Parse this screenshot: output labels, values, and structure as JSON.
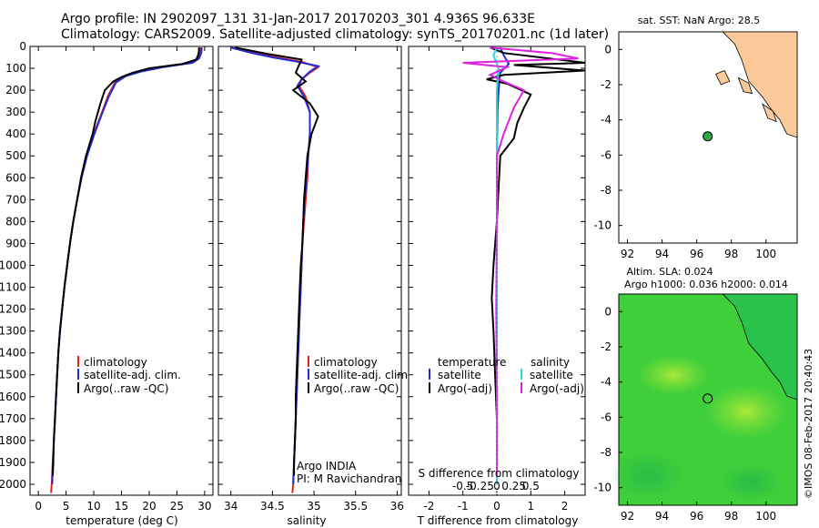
{
  "figure": {
    "title_line1": "Argo profile: IN 2902097_131 31-Jan-2017 20170203_301 4.936S 96.633E",
    "title_line2": "Climatology: CARS2009. Satellite-adjusted climatology: synTS_20170201.nc (1d later)",
    "watermark": "©IMOS 08-Feb-2017 20:40:43",
    "colors": {
      "climatology": "#e8221b",
      "satellite": "#1f2bd6",
      "argo": "#000000",
      "sat_sdiff": "#22d8e8",
      "argo_sdiff": "#e020e0",
      "land": "#fbc99a",
      "sla_field": "#3fcf3a",
      "argo_marker": "#2ea844"
    }
  },
  "chart_data": [
    {
      "type": "line",
      "panel": "temperature",
      "xlabel": "temperature (deg C)",
      "ylabel": "",
      "xlim": [
        -1.5,
        31.5
      ],
      "ylim": [
        2050,
        0
      ],
      "xticks": [
        0,
        5,
        10,
        15,
        20,
        25,
        30
      ],
      "yticks": [
        0,
        100,
        200,
        300,
        400,
        500,
        600,
        700,
        800,
        900,
        1000,
        1100,
        1200,
        1300,
        1400,
        1500,
        1600,
        1700,
        1800,
        1900,
        2000
      ],
      "legend": [
        "climatology",
        "satellite-adj. clim.",
        "Argo(..raw -QC)"
      ],
      "legend_placement": "lower-center",
      "series": [
        {
          "name": "climatology",
          "color": "#e8221b",
          "points": [
            [
              29.3,
              5
            ],
            [
              29.2,
              30
            ],
            [
              28.8,
              55
            ],
            [
              27.5,
              75
            ],
            [
              22,
              95
            ],
            [
              18,
              115
            ],
            [
              15.5,
              135
            ],
            [
              13.8,
              165
            ],
            [
              12.5,
              230
            ],
            [
              11.5,
              300
            ],
            [
              10,
              400
            ],
            [
              8.7,
              500
            ],
            [
              7.8,
              600
            ],
            [
              7,
              700
            ],
            [
              6.3,
              800
            ],
            [
              5.7,
              900
            ],
            [
              5.2,
              1000
            ],
            [
              4.7,
              1100
            ],
            [
              4.3,
              1200
            ],
            [
              3.9,
              1300
            ],
            [
              3.6,
              1400
            ],
            [
              3.4,
              1500
            ],
            [
              3.2,
              1600
            ],
            [
              3.0,
              1700
            ],
            [
              2.8,
              1800
            ],
            [
              2.6,
              1900
            ],
            [
              2.4,
              2000
            ],
            [
              2.3,
              2040
            ]
          ]
        },
        {
          "name": "satellite-adj. clim.",
          "color": "#1f2bd6",
          "points": [
            [
              29.5,
              5
            ],
            [
              29.4,
              30
            ],
            [
              29,
              55
            ],
            [
              27.8,
              75
            ],
            [
              22.5,
              95
            ],
            [
              18.5,
              115
            ],
            [
              15.8,
              135
            ],
            [
              14,
              165
            ],
            [
              12.7,
              230
            ],
            [
              11.6,
              300
            ],
            [
              10.1,
              400
            ],
            [
              8.8,
              500
            ],
            [
              7.8,
              600
            ],
            [
              7,
              700
            ],
            [
              6.3,
              800
            ],
            [
              5.7,
              900
            ],
            [
              5.2,
              1000
            ],
            [
              4.7,
              1100
            ],
            [
              4.3,
              1200
            ],
            [
              3.9,
              1300
            ],
            [
              3.6,
              1400
            ],
            [
              3.4,
              1500
            ],
            [
              3.2,
              1600
            ],
            [
              3.0,
              1700
            ],
            [
              2.8,
              1800
            ],
            [
              2.6,
              1900
            ],
            [
              2.5,
              2000
            ]
          ]
        },
        {
          "name": "Argo(..raw -QC)",
          "color": "#000000",
          "points": [
            [
              29,
              5
            ],
            [
              28.9,
              35
            ],
            [
              28.5,
              60
            ],
            [
              26,
              80
            ],
            [
              20,
              100
            ],
            [
              17,
              120
            ],
            [
              15,
              140
            ],
            [
              13.5,
              160
            ],
            [
              12,
              200
            ],
            [
              11.2,
              260
            ],
            [
              10.3,
              340
            ],
            [
              9.8,
              400
            ],
            [
              8.6,
              500
            ],
            [
              7.7,
              600
            ],
            [
              7,
              700
            ],
            [
              6.3,
              800
            ],
            [
              5.7,
              900
            ],
            [
              5.2,
              1000
            ],
            [
              4.7,
              1100
            ],
            [
              4.3,
              1200
            ],
            [
              3.9,
              1300
            ],
            [
              3.6,
              1400
            ],
            [
              3.4,
              1500
            ],
            [
              3.2,
              1600
            ],
            [
              3.0,
              1700
            ],
            [
              2.8,
              1800
            ],
            [
              2.7,
              1900
            ],
            [
              2.6,
              1960
            ]
          ]
        }
      ]
    },
    {
      "type": "line",
      "panel": "salinity",
      "xlabel": "salinity",
      "ylabel": "",
      "xlim": [
        33.85,
        36.05
      ],
      "ylim": [
        2050,
        0
      ],
      "xticks": [
        34,
        34.5,
        35,
        35.5,
        36
      ],
      "legend": [
        "climatology",
        "satellite-adj. clim.",
        "Argo(..raw -QC)"
      ],
      "legend_placement": "lower-right",
      "annotations": [
        "Argo INDIA",
        "PI: M Ravichandran"
      ],
      "series": [
        {
          "name": "climatology",
          "color": "#e8221b",
          "points": [
            [
              34.05,
              5
            ],
            [
              34.3,
              30
            ],
            [
              34.55,
              50
            ],
            [
              34.85,
              70
            ],
            [
              35.05,
              95
            ],
            [
              34.95,
              120
            ],
            [
              34.85,
              150
            ],
            [
              34.82,
              180
            ],
            [
              34.9,
              230
            ],
            [
              34.95,
              300
            ],
            [
              34.95,
              400
            ],
            [
              34.93,
              500
            ],
            [
              34.92,
              600
            ],
            [
              34.9,
              700
            ],
            [
              34.88,
              800
            ],
            [
              34.86,
              900
            ],
            [
              34.85,
              1000
            ],
            [
              34.84,
              1100
            ],
            [
              34.83,
              1200
            ],
            [
              34.82,
              1300
            ],
            [
              34.81,
              1400
            ],
            [
              34.8,
              1500
            ],
            [
              34.79,
              1600
            ],
            [
              34.78,
              1700
            ],
            [
              34.77,
              1800
            ],
            [
              34.76,
              1900
            ],
            [
              34.75,
              2000
            ],
            [
              34.74,
              2040
            ]
          ]
        },
        {
          "name": "satellite-adj. clim.",
          "color": "#1f2bd6",
          "points": [
            [
              34.0,
              5
            ],
            [
              34.25,
              30
            ],
            [
              34.5,
              50
            ],
            [
              34.8,
              70
            ],
            [
              35.05,
              90
            ],
            [
              34.95,
              115
            ],
            [
              34.85,
              150
            ],
            [
              34.8,
              180
            ],
            [
              34.88,
              230
            ],
            [
              34.95,
              300
            ],
            [
              34.95,
              400
            ],
            [
              34.93,
              500
            ],
            [
              34.91,
              600
            ],
            [
              34.89,
              700
            ],
            [
              34.87,
              800
            ],
            [
              34.86,
              900
            ],
            [
              34.85,
              1000
            ],
            [
              34.84,
              1100
            ],
            [
              34.83,
              1200
            ],
            [
              34.82,
              1300
            ],
            [
              34.81,
              1400
            ],
            [
              34.8,
              1500
            ],
            [
              34.79,
              1600
            ],
            [
              34.78,
              1700
            ],
            [
              34.77,
              1800
            ],
            [
              34.76,
              1900
            ],
            [
              34.75,
              2000
            ]
          ]
        },
        {
          "name": "Argo(..raw -QC)",
          "color": "#000000",
          "points": [
            [
              34.05,
              5
            ],
            [
              34.45,
              35
            ],
            [
              34.85,
              60
            ],
            [
              34.82,
              85
            ],
            [
              34.78,
              120
            ],
            [
              34.9,
              160
            ],
            [
              34.75,
              200
            ],
            [
              34.95,
              260
            ],
            [
              35.05,
              320
            ],
            [
              34.97,
              400
            ],
            [
              34.92,
              500
            ],
            [
              34.9,
              600
            ],
            [
              34.88,
              700
            ],
            [
              34.87,
              800
            ],
            [
              34.86,
              900
            ],
            [
              34.84,
              1000
            ],
            [
              34.83,
              1100
            ],
            [
              34.82,
              1200
            ],
            [
              34.81,
              1300
            ],
            [
              34.8,
              1400
            ],
            [
              34.79,
              1500
            ],
            [
              34.78,
              1600
            ],
            [
              34.78,
              1700
            ],
            [
              34.77,
              1800
            ],
            [
              34.76,
              1900
            ],
            [
              34.76,
              1960
            ]
          ]
        }
      ]
    },
    {
      "type": "line",
      "panel": "difference",
      "xlabel": "T difference from climatology",
      "xlabel_top": "S difference from climatology",
      "xlim": [
        -2.6,
        2.6
      ],
      "ylim": [
        2050,
        0
      ],
      "xticks": [
        -2,
        -1,
        0,
        1,
        2
      ],
      "xticks_top": [
        "-0.5",
        "-0.25",
        "0",
        "0.25",
        "0.5"
      ],
      "legend_titles": [
        "temperature",
        "salinity"
      ],
      "legend": [
        "satellite",
        "Argo(-adj)",
        "satellite",
        "Argo(-adj)"
      ],
      "legend_placement": "lower-center",
      "series": [
        {
          "name": "temperature satellite",
          "color": "#1f2bd6",
          "points": [
            [
              0.1,
              5
            ],
            [
              0.2,
              40
            ],
            [
              0.35,
              80
            ],
            [
              0.1,
              120
            ],
            [
              0.05,
              200
            ],
            [
              0.02,
              300
            ],
            [
              0,
              500
            ],
            [
              0,
              1000
            ],
            [
              0,
              2000
            ]
          ]
        },
        {
          "name": "temperature Argo(-adj)",
          "color": "#000000",
          "points": [
            [
              -0.2,
              5
            ],
            [
              0.2,
              30
            ],
            [
              2.6,
              75
            ],
            [
              0.5,
              85
            ],
            [
              2.6,
              110
            ],
            [
              0.2,
              130
            ],
            [
              -0.3,
              150
            ],
            [
              0.3,
              170
            ],
            [
              1.0,
              220
            ],
            [
              0.8,
              280
            ],
            [
              0.6,
              350
            ],
            [
              0.5,
              420
            ],
            [
              0.1,
              500
            ],
            [
              0,
              800
            ],
            [
              -0.1,
              1000
            ],
            [
              -0.15,
              1150
            ],
            [
              -0.1,
              1300
            ],
            [
              -0.05,
              1500
            ],
            [
              0,
              1700
            ],
            [
              0,
              1960
            ]
          ]
        },
        {
          "name": "salinity satellite",
          "color": "#22d8e8",
          "points": [
            [
              0,
              5
            ],
            [
              -0.1,
              40
            ],
            [
              0.05,
              100
            ],
            [
              0,
              200
            ],
            [
              0,
              500
            ],
            [
              0,
              1000
            ],
            [
              0,
              2000
            ]
          ]
        },
        {
          "name": "salinity Argo(-adj)",
          "color": "#e020e0",
          "points": [
            [
              -0.2,
              5
            ],
            [
              1.6,
              30
            ],
            [
              2.4,
              55
            ],
            [
              -1,
              75
            ],
            [
              0.3,
              95
            ],
            [
              -0.2,
              130
            ],
            [
              0.2,
              160
            ],
            [
              0.8,
              200
            ],
            [
              0.5,
              280
            ],
            [
              0.2,
              400
            ],
            [
              0,
              500
            ],
            [
              0,
              800
            ],
            [
              -0.02,
              1200
            ],
            [
              0,
              1600
            ],
            [
              0,
              1960
            ]
          ]
        }
      ]
    },
    {
      "type": "scatter",
      "panel": "location_map",
      "title": "sat. SST: NaN Argo: 28.5",
      "xlim": [
        91.5,
        101.8
      ],
      "ylim": [
        -11,
        1
      ],
      "xticks": [
        92,
        94,
        96,
        98,
        100
      ],
      "yticks": [
        0,
        -2,
        -4,
        -6,
        -8,
        -10
      ],
      "points": [
        {
          "lon": 96.633,
          "lat": -4.936
        }
      ]
    },
    {
      "type": "heatmap",
      "panel": "sla_map",
      "title_line1": "Altim. SLA: 0.024",
      "title_line2": "Argo h1000: 0.036 h2000: 0.014",
      "xlim": [
        91.5,
        101.8
      ],
      "ylim": [
        -11,
        1
      ],
      "xticks": [
        92,
        94,
        96,
        98,
        100
      ],
      "yticks": [
        0,
        -2,
        -4,
        -6,
        -8,
        -10
      ],
      "points": [
        {
          "lon": 96.633,
          "lat": -4.936
        }
      ]
    }
  ]
}
